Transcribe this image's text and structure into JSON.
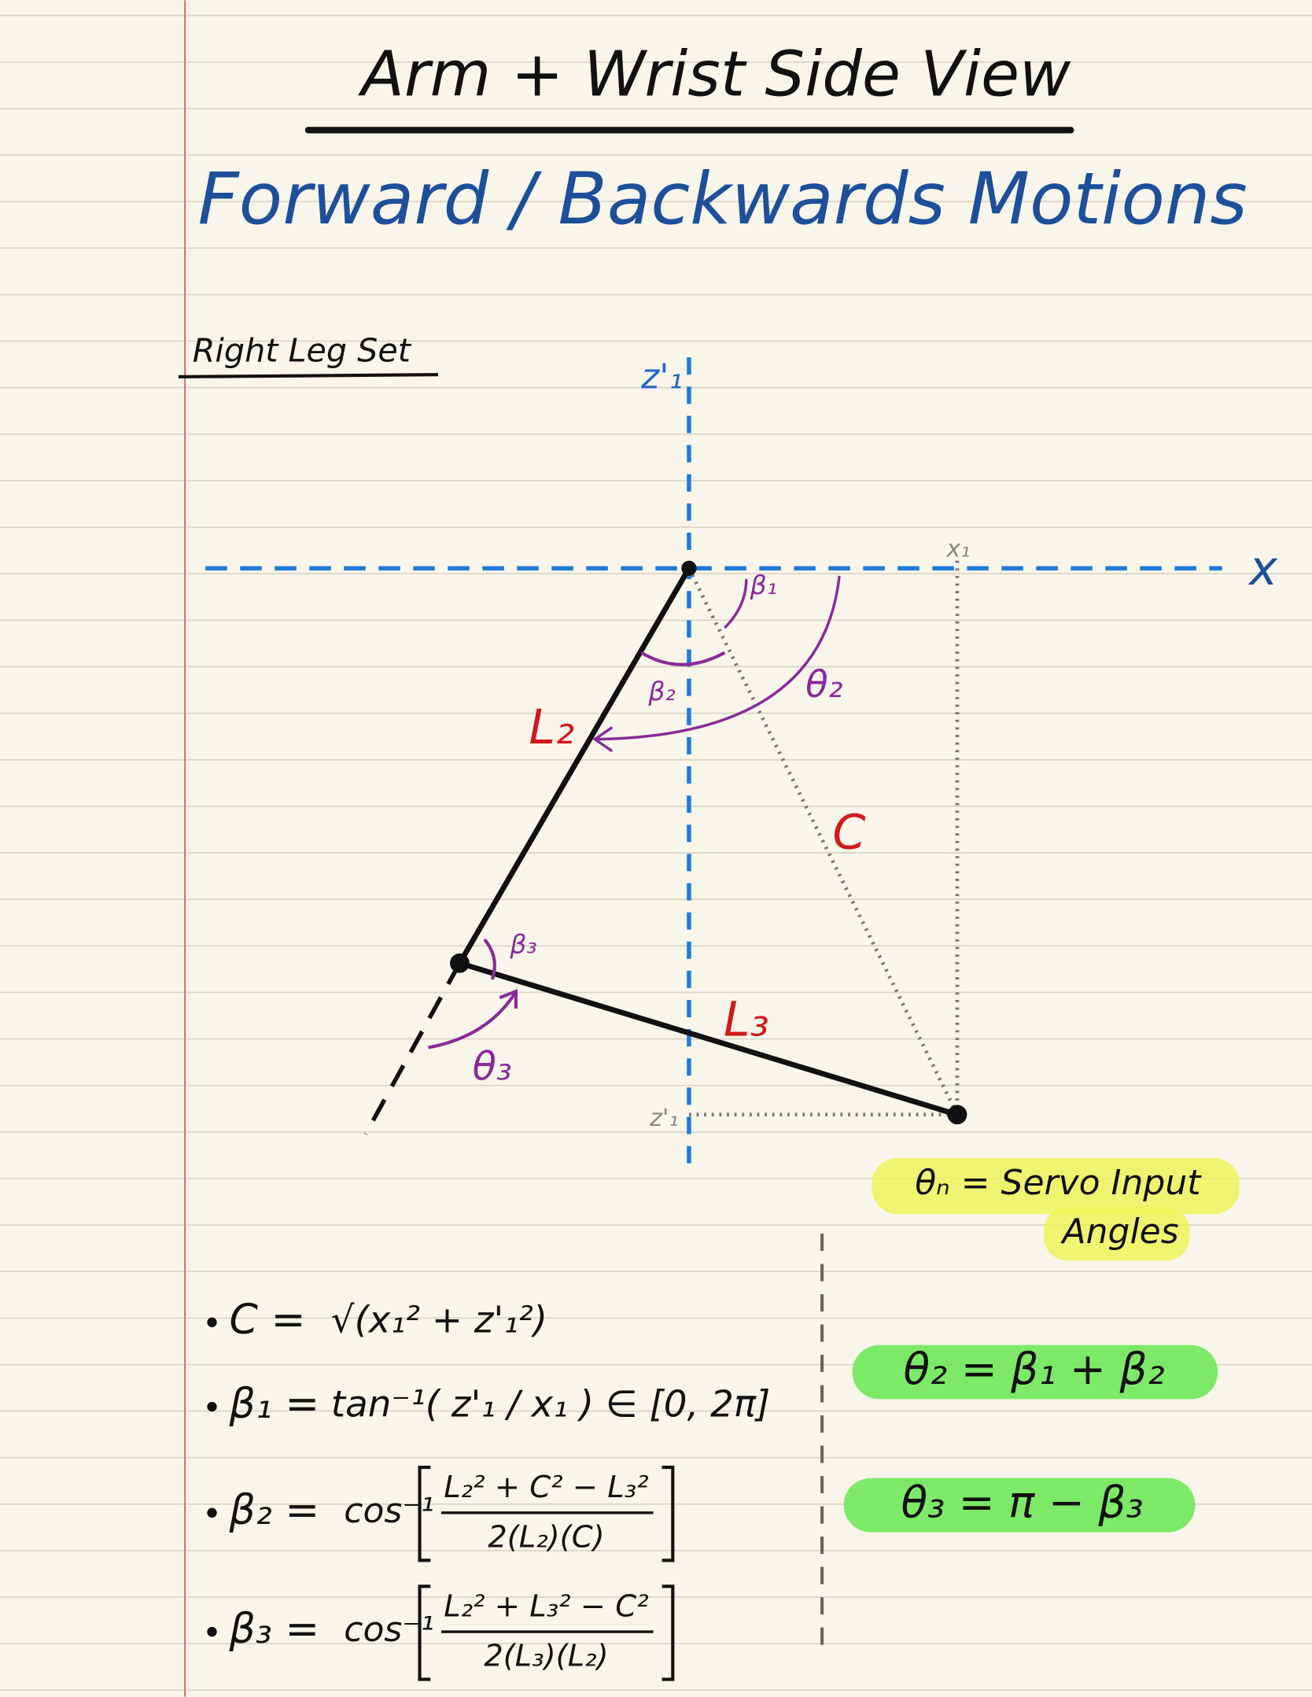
{
  "header": {
    "title": "Arm + Wrist Side View",
    "subtitle": "Forward / Backwards Motions"
  },
  "section": {
    "label": "Right Leg Set"
  },
  "diagram": {
    "axes": {
      "z": "z'₁",
      "x": "x"
    },
    "points": {
      "x1": "x₁",
      "z1": "z'₁"
    },
    "links": {
      "L2": "L₂",
      "L3": "L₃",
      "C": "C"
    },
    "angles": {
      "b1": "β₁",
      "b2": "β₂",
      "b3": "β₃",
      "t2": "θ₂",
      "t3": "θ₃"
    }
  },
  "note": {
    "line1": "θₙ = Servo Input",
    "line2": "Angles"
  },
  "equations": [
    {
      "lhs": "C =",
      "body": "√(x₁² + z'₁²)"
    },
    {
      "lhs": "β₁ =",
      "body": "tan⁻¹( z'₁ / x₁ )  ∈ [0, 2π]"
    },
    {
      "lhs": "β₂ =",
      "fn": "cos⁻¹",
      "num": "L₂² + C² − L₃²",
      "den": "2(L₂)(C)"
    },
    {
      "lhs": "β₃ =",
      "fn": "cos⁻¹",
      "num": "L₂² + L₃² − C²",
      "den": "2(L₃)(L₂)"
    }
  ],
  "results": [
    "θ₂ = β₁ + β₂",
    "θ₃ = π − β₃"
  ]
}
